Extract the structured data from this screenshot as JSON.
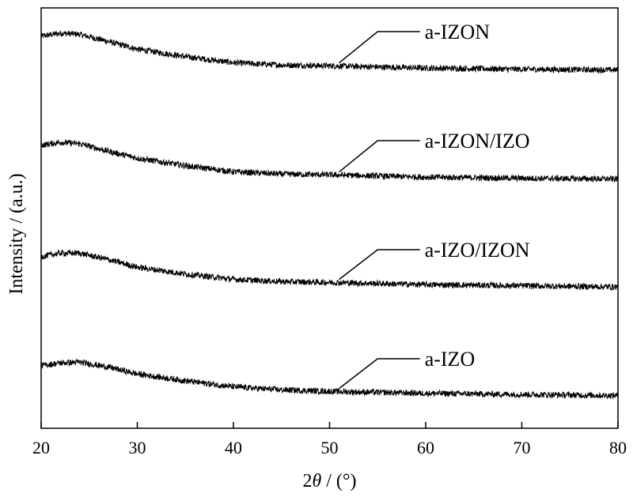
{
  "chart_data": {
    "type": "line",
    "title": "",
    "xlabel_prefix": "2",
    "xlabel_symbol": "θ",
    "xlabel_suffix": " / (°)",
    "ylabel": "Intensity / (a.u.)",
    "xlim": [
      20,
      80
    ],
    "x_ticks": [
      20,
      30,
      40,
      50,
      60,
      70,
      80
    ],
    "y_ticks_shown": false,
    "grid": false,
    "legend": "inline labels with leader lines",
    "series": [
      {
        "name": "a-IZON",
        "offset": 3,
        "profile": [
          [
            20,
            0.92
          ],
          [
            22,
            1.0
          ],
          [
            24,
            0.97
          ],
          [
            27,
            0.78
          ],
          [
            30,
            0.58
          ],
          [
            35,
            0.38
          ],
          [
            40,
            0.22
          ],
          [
            45,
            0.16
          ],
          [
            50,
            0.14
          ],
          [
            60,
            0.08
          ],
          [
            70,
            0.05
          ],
          [
            80,
            0.03
          ]
        ]
      },
      {
        "name": "a-IZON/IZO",
        "offset": 2,
        "profile": [
          [
            20,
            0.92
          ],
          [
            22,
            1.0
          ],
          [
            24,
            0.96
          ],
          [
            27,
            0.76
          ],
          [
            30,
            0.58
          ],
          [
            35,
            0.38
          ],
          [
            40,
            0.22
          ],
          [
            45,
            0.16
          ],
          [
            50,
            0.14
          ],
          [
            60,
            0.08
          ],
          [
            70,
            0.05
          ],
          [
            80,
            0.03
          ]
        ]
      },
      {
        "name": "a-IZO/IZON",
        "offset": 1,
        "profile": [
          [
            20,
            0.86
          ],
          [
            22,
            0.95
          ],
          [
            24,
            0.95
          ],
          [
            27,
            0.78
          ],
          [
            30,
            0.58
          ],
          [
            35,
            0.4
          ],
          [
            40,
            0.26
          ],
          [
            45,
            0.2
          ],
          [
            50,
            0.18
          ],
          [
            60,
            0.12
          ],
          [
            70,
            0.09
          ],
          [
            80,
            0.06
          ]
        ]
      },
      {
        "name": "a-IZO",
        "offset": 0,
        "profile": [
          [
            20,
            0.86
          ],
          [
            22,
            0.93
          ],
          [
            24,
            0.95
          ],
          [
            27,
            0.82
          ],
          [
            30,
            0.64
          ],
          [
            35,
            0.46
          ],
          [
            40,
            0.3
          ],
          [
            45,
            0.22
          ],
          [
            50,
            0.18
          ],
          [
            60,
            0.13
          ],
          [
            70,
            0.1
          ],
          [
            80,
            0.07
          ]
        ]
      }
    ]
  }
}
